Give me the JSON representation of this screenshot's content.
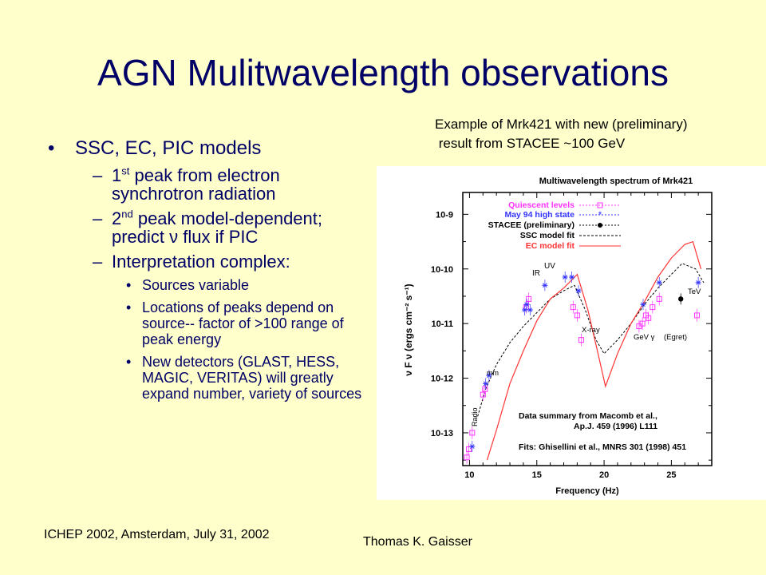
{
  "slide": {
    "title": "AGN Mulitwavelength observations",
    "caption": {
      "line1": "Example of Mrk421 with new (preliminary)",
      "line2": " result from STACEE ~100 GeV"
    },
    "bullets": {
      "b1": "SSC, EC, PIC models",
      "s1_a": "1",
      "s1_sup": "st",
      "s1_b": " peak from electron synchrotron radiation",
      "s2_a": "2",
      "s2_sup": "nd",
      "s2_b": " peak model-dependent; predict ν flux if PIC",
      "s3": "Interpretation complex:",
      "t1": "Sources variable",
      "t2": "Locations of peaks depend on source-- factor of >100 range of peak energy",
      "t3": "New detectors (GLAST, HESS, MAGIC, VERITAS) will greatly expand number, variety of sources"
    },
    "footer": {
      "left": "ICHEP 2002, Amsterdam, July 31, 2002",
      "right": "Thomas K. Gaisser"
    },
    "colors": {
      "text": "#000066",
      "background": "#ffffcc",
      "quiescent": "#ff33ff",
      "high_state": "#3333ff",
      "ec_fit": "#ff3333"
    }
  },
  "chart_data": {
    "type": "scatter",
    "title": "Multiwavelength spectrum of Mrk421",
    "xlabel": "Frequency (Hz)",
    "ylabel": "ν F ν (ergs cm⁻² s⁻¹)",
    "xlim": [
      9.5,
      28
    ],
    "ylim": [
      -13.6,
      -8.6
    ],
    "x_ticks": [
      "10",
      "15",
      "20",
      "25"
    ],
    "y_ticks": [
      "10-9",
      "10-10",
      "10-11",
      "10-12",
      "10-13"
    ],
    "legend": {
      "quiescent": "Quiescent levels",
      "high": "May 94 high state",
      "stacee": "STACEE (preliminary)",
      "ssc": "SSC model fit",
      "ec": "EC model fit"
    },
    "annotations": {
      "radio": "Radio",
      "mm": "mm",
      "ir": "IR",
      "uv": "UV",
      "xray": "X-ray",
      "gev": "GeV γ",
      "egret": "(Egret)",
      "tev": "TeV",
      "summary1": "Data summary from Macomb et al.,",
      "summary2": "Ap.J. 459 (1996) L111",
      "fits": "Fits: Ghisellini et al., MNRS 301 (1998) 451"
    },
    "series": [
      {
        "name": "Quiescent levels",
        "points": [
          [
            9.8,
            -13.45
          ],
          [
            9.95,
            -13.3
          ],
          [
            10.2,
            -13.0
          ],
          [
            11.0,
            -12.3
          ],
          [
            11.15,
            -12.2
          ],
          [
            14.2,
            -10.7
          ],
          [
            14.4,
            -10.55
          ],
          [
            17.7,
            -10.7
          ],
          [
            18.0,
            -10.85
          ],
          [
            18.3,
            -11.3
          ],
          [
            22.6,
            -11.05
          ],
          [
            22.85,
            -11.0
          ],
          [
            23.1,
            -10.85
          ],
          [
            23.3,
            -10.9
          ],
          [
            23.6,
            -10.7
          ],
          [
            24.1,
            -10.55
          ],
          [
            26.9,
            -10.85
          ]
        ]
      },
      {
        "name": "May 94 high state",
        "points": [
          [
            10.2,
            -13.25
          ],
          [
            11.2,
            -12.1
          ],
          [
            11.45,
            -11.95
          ],
          [
            14.1,
            -10.75
          ],
          [
            14.25,
            -10.65
          ],
          [
            14.5,
            -10.75
          ],
          [
            15.6,
            -10.3
          ],
          [
            17.1,
            -10.15
          ],
          [
            17.6,
            -10.15
          ],
          [
            18.1,
            -10.4
          ],
          [
            22.9,
            -10.65
          ],
          [
            24.1,
            -10.25
          ],
          [
            27.0,
            -10.25
          ]
        ]
      },
      {
        "name": "STACEE (preliminary)",
        "points": [
          [
            25.7,
            -10.55
          ]
        ]
      },
      {
        "name": "SSC model fit",
        "points": [
          [
            10.6,
            -12.7
          ],
          [
            11.2,
            -12.2
          ],
          [
            12,
            -11.75
          ],
          [
            13,
            -11.35
          ],
          [
            14,
            -11.05
          ],
          [
            15,
            -10.8
          ],
          [
            16,
            -10.55
          ],
          [
            17,
            -10.4
          ],
          [
            17.8,
            -10.3
          ],
          [
            18.6,
            -10.75
          ],
          [
            19.4,
            -11.3
          ],
          [
            20.0,
            -11.55
          ],
          [
            21,
            -11.3
          ],
          [
            22,
            -11.0
          ],
          [
            23,
            -10.65
          ],
          [
            24,
            -10.35
          ],
          [
            25,
            -10.1
          ],
          [
            25.8,
            -9.9
          ],
          [
            26.8,
            -10.0
          ],
          [
            27.4,
            -10.25
          ]
        ]
      },
      {
        "name": "EC model fit",
        "points": [
          [
            11.3,
            -13.5
          ],
          [
            12,
            -12.95
          ],
          [
            13,
            -12.1
          ],
          [
            14,
            -11.5
          ],
          [
            15,
            -10.95
          ],
          [
            16,
            -10.55
          ],
          [
            17,
            -10.35
          ],
          [
            18,
            -10.1
          ],
          [
            18.8,
            -10.75
          ],
          [
            19.6,
            -11.6
          ],
          [
            20.1,
            -12.15
          ],
          [
            21,
            -11.55
          ],
          [
            22,
            -11.0
          ],
          [
            23,
            -10.6
          ],
          [
            24,
            -10.15
          ],
          [
            25,
            -9.8
          ],
          [
            26,
            -9.55
          ],
          [
            26.6,
            -9.5
          ],
          [
            27.2,
            -10.0
          ]
        ]
      }
    ]
  }
}
